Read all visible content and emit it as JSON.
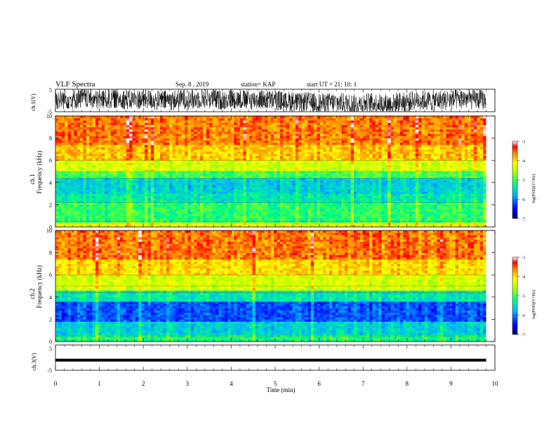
{
  "header": {
    "title": "VLF Spectra",
    "date": "Sep. 8  , 2019",
    "station": "station= KAP",
    "start": "start  UT  =   21: 10: 1"
  },
  "chart_data": [
    {
      "type": "line",
      "panel": "waveform-ch1",
      "ylabel": "ch.1(V)",
      "ylim": [
        -5,
        5
      ],
      "yticks": [
        "5",
        "-5"
      ],
      "x_range": [
        0,
        10
      ],
      "description_values": {
        "approx_center": 0.5,
        "approx_amplitude": 4.5
      },
      "color": "#000000"
    },
    {
      "type": "heatmap",
      "panel": "spectrogram-ch1",
      "ylabel_channel": "ch.1",
      "ylabel": "Frequency  (kHz)",
      "ylim": [
        0,
        10
      ],
      "yticks": [
        "0",
        "2",
        "4",
        "6",
        "8",
        "10"
      ],
      "x_range": [
        0,
        9.8
      ],
      "colorbar": {
        "label": "log(PSD)(V²/Hz)",
        "range": [
          -7,
          -3
        ],
        "ticks": [
          "-3",
          "-4",
          "-5",
          "-6",
          "-7"
        ]
      },
      "bands_log_psd": [
        {
          "f_from": 0,
          "f_to": 0.5,
          "level": -4.3
        },
        {
          "f_from": 0.5,
          "f_to": 2.2,
          "level": -5.1
        },
        {
          "f_from": 2.2,
          "f_to": 3.0,
          "level": -5.4
        },
        {
          "f_from": 3.0,
          "f_to": 4.4,
          "level": -5.6
        },
        {
          "f_from": 4.4,
          "f_to": 5.0,
          "level": -5.0
        },
        {
          "f_from": 5.0,
          "f_to": 6.0,
          "level": -4.4
        },
        {
          "f_from": 6.0,
          "f_to": 7.5,
          "level": -3.9
        },
        {
          "f_from": 7.5,
          "f_to": 10,
          "level": -3.6
        }
      ]
    },
    {
      "type": "heatmap",
      "panel": "spectrogram-ch2",
      "ylabel_channel": "ch.2",
      "ylabel": "Frequency  (kHz)",
      "ylim": [
        0,
        10
      ],
      "yticks": [
        "0",
        "2",
        "4",
        "6",
        "8",
        "10"
      ],
      "x_range": [
        0,
        9.8
      ],
      "colorbar": {
        "label": "log(PSD)(V²/Hz)",
        "range": [
          -7,
          -3
        ],
        "ticks": [
          "-3",
          "-4",
          "-5",
          "-6",
          "-7"
        ]
      },
      "bands_log_psd": [
        {
          "f_from": 0,
          "f_to": 0.6,
          "level": -5.2
        },
        {
          "f_from": 0.6,
          "f_to": 1.8,
          "level": -5.6
        },
        {
          "f_from": 1.8,
          "f_to": 3.6,
          "level": -6.2
        },
        {
          "f_from": 3.6,
          "f_to": 4.6,
          "level": -5.4
        },
        {
          "f_from": 4.6,
          "f_to": 6.0,
          "level": -4.4
        },
        {
          "f_from": 6.0,
          "f_to": 7.5,
          "level": -4.0
        },
        {
          "f_from": 7.5,
          "f_to": 10,
          "level": -3.6
        }
      ]
    },
    {
      "type": "line",
      "panel": "waveform-ch3",
      "ylabel": "ch.3(V)",
      "ylim": [
        -5,
        5
      ],
      "yticks": [
        "5",
        "-5"
      ],
      "x_range": [
        0,
        9.8
      ],
      "values_constant": -1.0,
      "color": "#000000"
    }
  ],
  "xaxis": {
    "label": "Time  (min)",
    "ticks": [
      "0",
      "1",
      "2",
      "3",
      "4",
      "5",
      "6",
      "7",
      "8",
      "9",
      "10"
    ],
    "range": [
      0,
      10
    ]
  }
}
